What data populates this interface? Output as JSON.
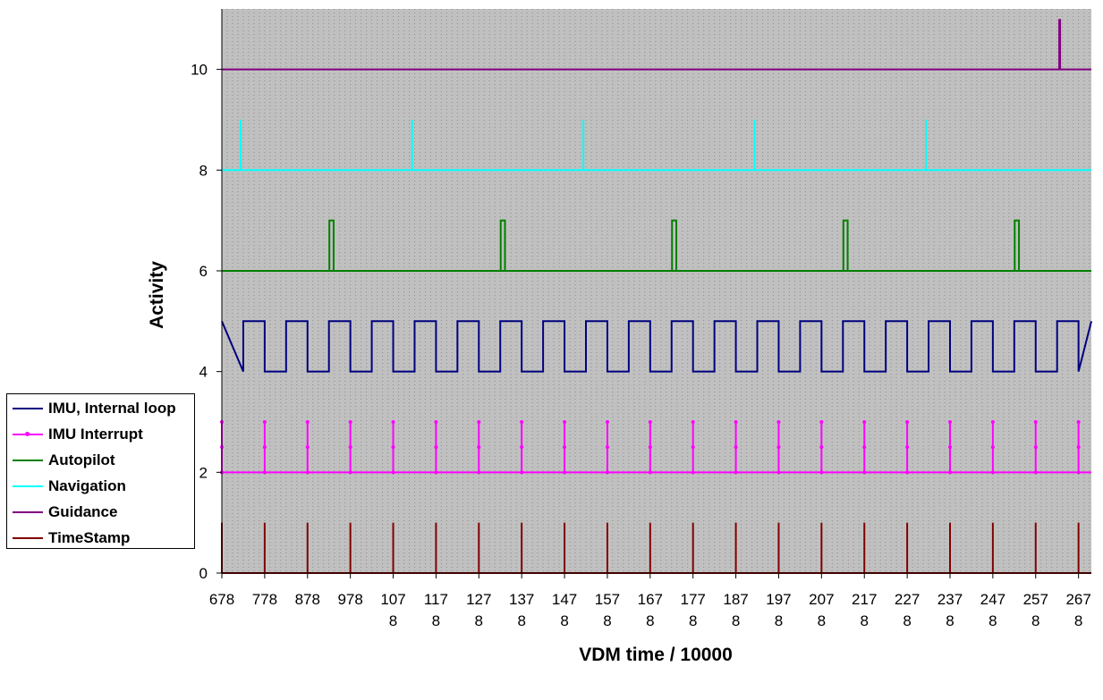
{
  "chart_data": {
    "type": "line",
    "title": "",
    "xlabel": "VDM time / 10000",
    "ylabel": "Activity",
    "ylim": [
      0,
      11.2
    ],
    "yticks": [
      0,
      2,
      4,
      6,
      8,
      10
    ],
    "xlim": [
      678,
      2708
    ],
    "x_tick_values": [
      678,
      778,
      878,
      978,
      1078,
      1178,
      1278,
      1378,
      1478,
      1578,
      1678,
      1778,
      1878,
      1978,
      2078,
      2178,
      2278,
      2378,
      2478,
      2578,
      2678
    ],
    "x_tick_labels": [
      [
        "678"
      ],
      [
        "778"
      ],
      [
        "878"
      ],
      [
        "978"
      ],
      [
        "107",
        "8"
      ],
      [
        "117",
        "8"
      ],
      [
        "127",
        "8"
      ],
      [
        "137",
        "8"
      ],
      [
        "147",
        "8"
      ],
      [
        "157",
        "8"
      ],
      [
        "167",
        "8"
      ],
      [
        "177",
        "8"
      ],
      [
        "187",
        "8"
      ],
      [
        "197",
        "8"
      ],
      [
        "207",
        "8"
      ],
      [
        "217",
        "8"
      ],
      [
        "227",
        "8"
      ],
      [
        "237",
        "8"
      ],
      [
        "247",
        "8"
      ],
      [
        "257",
        "8"
      ],
      [
        "267",
        "8"
      ]
    ],
    "grid": "vertical dotted",
    "plot_background": "#c0c0c0",
    "legend_position": "left",
    "series": [
      {
        "name": "IMU, Internal loop",
        "color": "#000080",
        "kind": "square",
        "low": 4,
        "high": 5,
        "period": 100,
        "high_duration": 50,
        "first_rise": 628
      },
      {
        "name": "IMU Interrupt",
        "color": "#ff00ff",
        "kind": "spikes_markers",
        "base": 2,
        "peak": 3,
        "marker_y": 2.5,
        "x": [
          678,
          778,
          878,
          978,
          1078,
          1178,
          1278,
          1378,
          1478,
          1578,
          1678,
          1778,
          1878,
          1978,
          2078,
          2178,
          2278,
          2378,
          2478,
          2578,
          2678
        ]
      },
      {
        "name": "Autopilot",
        "color": "#008000",
        "kind": "pulses",
        "base": 6,
        "peak": 7,
        "width": 10,
        "x": [
          929,
          1329,
          1729,
          2129,
          2529
        ]
      },
      {
        "name": "Navigation",
        "color": "#00ffff",
        "kind": "spikes",
        "base": 8,
        "peak": 9,
        "x": [
          722,
          1122,
          1522,
          1922,
          2322
        ]
      },
      {
        "name": "Guidance",
        "color": "#800080",
        "kind": "spikes",
        "base": 10,
        "peak": 11,
        "x": [
          2634
        ]
      },
      {
        "name": "TimeStamp",
        "color": "#800000",
        "kind": "spikes",
        "base": 0,
        "peak": 1,
        "x": [
          678,
          778,
          878,
          978,
          1078,
          1178,
          1278,
          1378,
          1478,
          1578,
          1678,
          1778,
          1878,
          1978,
          2078,
          2178,
          2278,
          2378,
          2478,
          2578,
          2678
        ]
      }
    ]
  }
}
